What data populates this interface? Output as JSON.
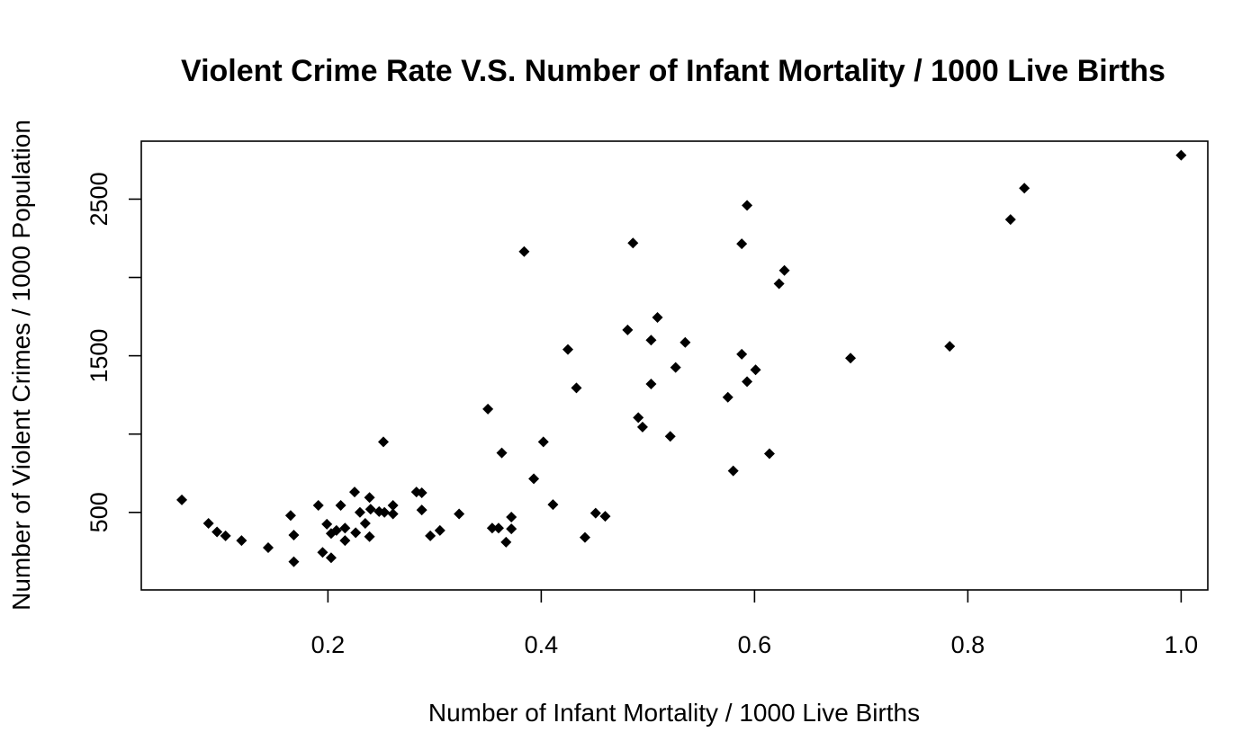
{
  "chart_data": {
    "type": "scatter",
    "title": "Violent Crime Rate V.S. Number of Infant Mortality / 1000 Live Births",
    "xlabel": "Number of Infant Mortality / 1000 Live Births",
    "ylabel": "Number of Violent Crimes / 1000 Population",
    "xlim": [
      0.025,
      1.025
    ],
    "ylim": [
      5,
      2870
    ],
    "x_ticks": [
      0.2,
      0.4,
      0.6,
      0.8,
      1.0
    ],
    "x_tick_labels": [
      "0.2",
      "0.4",
      "0.6",
      "0.8",
      "1.0"
    ],
    "y_ticks": [
      500,
      1000,
      1500,
      2000,
      2500
    ],
    "y_tick_labels": [
      "500",
      "",
      "1500",
      "",
      "2500"
    ],
    "grid": false,
    "marker": "diamond",
    "point_color": "#000000",
    "points": [
      [
        0.063,
        580
      ],
      [
        0.088,
        430
      ],
      [
        0.096,
        375
      ],
      [
        0.104,
        350
      ],
      [
        0.119,
        320
      ],
      [
        0.144,
        275
      ],
      [
        0.165,
        480
      ],
      [
        0.168,
        355
      ],
      [
        0.168,
        185
      ],
      [
        0.191,
        545
      ],
      [
        0.195,
        245
      ],
      [
        0.199,
        425
      ],
      [
        0.203,
        210
      ],
      [
        0.203,
        365
      ],
      [
        0.208,
        385
      ],
      [
        0.212,
        545
      ],
      [
        0.216,
        320
      ],
      [
        0.216,
        400
      ],
      [
        0.225,
        630
      ],
      [
        0.226,
        370
      ],
      [
        0.23,
        500
      ],
      [
        0.235,
        430
      ],
      [
        0.239,
        345
      ],
      [
        0.239,
        595
      ],
      [
        0.24,
        520
      ],
      [
        0.248,
        505
      ],
      [
        0.253,
        500
      ],
      [
        0.252,
        950
      ],
      [
        0.261,
        490
      ],
      [
        0.261,
        545
      ],
      [
        0.283,
        630
      ],
      [
        0.288,
        625
      ],
      [
        0.288,
        515
      ],
      [
        0.296,
        350
      ],
      [
        0.305,
        385
      ],
      [
        0.323,
        490
      ],
      [
        0.35,
        1160
      ],
      [
        0.354,
        400
      ],
      [
        0.36,
        400
      ],
      [
        0.363,
        880
      ],
      [
        0.367,
        310
      ],
      [
        0.372,
        470
      ],
      [
        0.372,
        395
      ],
      [
        0.384,
        2165
      ],
      [
        0.393,
        715
      ],
      [
        0.402,
        950
      ],
      [
        0.411,
        550
      ],
      [
        0.425,
        1540
      ],
      [
        0.433,
        1295
      ],
      [
        0.441,
        340
      ],
      [
        0.451,
        495
      ],
      [
        0.46,
        475
      ],
      [
        0.481,
        1665
      ],
      [
        0.486,
        2220
      ],
      [
        0.491,
        1105
      ],
      [
        0.495,
        1045
      ],
      [
        0.503,
        1320
      ],
      [
        0.503,
        1600
      ],
      [
        0.509,
        1745
      ],
      [
        0.521,
        985
      ],
      [
        0.526,
        1425
      ],
      [
        0.535,
        1585
      ],
      [
        0.575,
        1235
      ],
      [
        0.58,
        765
      ],
      [
        0.588,
        1510
      ],
      [
        0.588,
        2215
      ],
      [
        0.593,
        2460
      ],
      [
        0.593,
        1335
      ],
      [
        0.601,
        1410
      ],
      [
        0.614,
        875
      ],
      [
        0.623,
        1960
      ],
      [
        0.628,
        2045
      ],
      [
        0.69,
        1485
      ],
      [
        0.783,
        1560
      ],
      [
        0.84,
        2370
      ],
      [
        0.853,
        2570
      ],
      [
        1.0,
        2780
      ]
    ]
  }
}
